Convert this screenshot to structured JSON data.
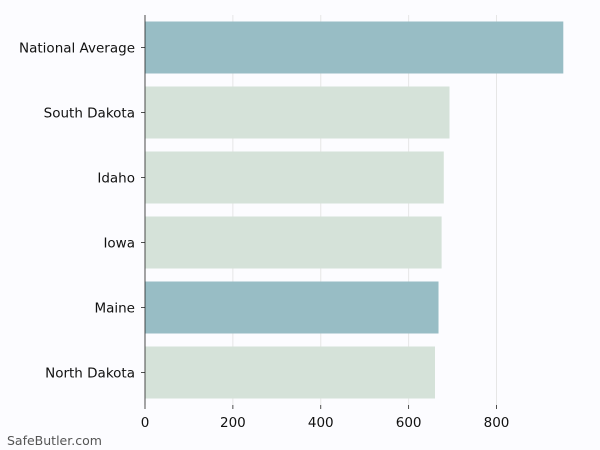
{
  "chart_data": {
    "type": "bar",
    "orientation": "horizontal",
    "categories": [
      "National Average",
      "South Dakota",
      "Idaho",
      "Iowa",
      "Maine",
      "North Dakota"
    ],
    "values": [
      952,
      693,
      680,
      675,
      668,
      660
    ],
    "bar_colors": [
      "#98bdc5",
      "#d5e2d9",
      "#d5e2d9",
      "#d5e2d9",
      "#98bdc5",
      "#d5e2d9"
    ],
    "xlim": [
      0,
      990
    ],
    "xticks": [
      0,
      200,
      400,
      600,
      800
    ],
    "grid": "vertical",
    "title": "",
    "xlabel": "",
    "ylabel": ""
  },
  "watermark": "SafeButler.com"
}
